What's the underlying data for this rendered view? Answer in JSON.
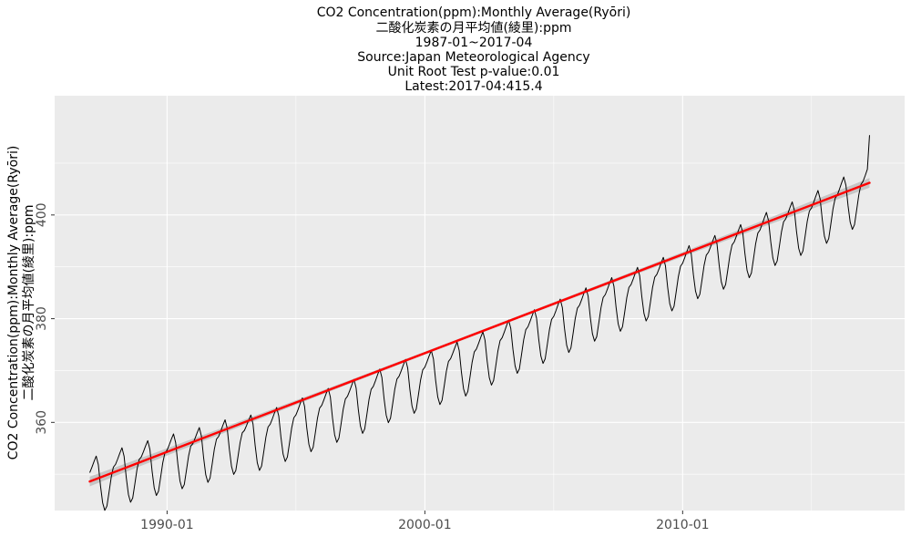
{
  "chart_data": {
    "type": "line",
    "title_lines": [
      "CO2 Concentration(ppm):Monthly Average(Ryōri)",
      "二酸化炭素の月平均値(綾里):ppm",
      "1987-01~2017-04",
      "Source:Japan Meteorological Agency",
      "Unit Root Test p-value:0.01",
      "Latest:2017-04:415.4"
    ],
    "xlabel": "",
    "ylabel_lines": [
      "CO2 Concentration(ppm):Monthly Average(Ryōri)",
      "二酸化炭素の月平均値(綾里):ppm"
    ],
    "x_range": [
      "1987-01",
      "2017-04"
    ],
    "x_ticks": [
      "1990-01",
      "2000-01",
      "2010-01"
    ],
    "y_ticks": [
      360,
      380,
      400
    ],
    "ylim": [
      343,
      423
    ],
    "grid": true,
    "legend": "none",
    "monthly_anomaly": [
      1.6,
      2.5,
      3.5,
      4.4,
      2.6,
      -1.6,
      -5.0,
      -6.6,
      -5.9,
      -3.3,
      -0.6,
      1.2
    ],
    "series": [
      {
        "type": "yearly_means",
        "years": [
          1987,
          1988,
          1989,
          1990,
          1991,
          1992,
          1993,
          1994,
          1995,
          1996,
          1997,
          1998,
          1999,
          2000,
          2001,
          2002,
          2003,
          2004,
          2005,
          2006,
          2007,
          2008,
          2009,
          2010,
          2011,
          2012,
          2013,
          2014,
          2015,
          2016,
          2017
        ],
        "values": [
          349.5,
          351.1,
          352.4,
          353.7,
          354.9,
          356.5,
          357.2,
          358.9,
          360.8,
          362.6,
          364.3,
          366.4,
          368.2,
          369.9,
          371.5,
          373.6,
          375.9,
          377.8,
          379.9,
          382.1,
          384.0,
          386.0,
          387.9,
          390.3,
          392.1,
          394.3,
          396.7,
          398.6,
          400.9,
          403.6,
          406.2
        ]
      },
      {
        "type": "monthly_average",
        "start": "1987-01",
        "end": "2017-04",
        "latest": 415.4
      },
      {
        "type": "linear_trend",
        "x": [
          "1987-01",
          "2017-04"
        ],
        "y": [
          348.6,
          406.2
        ],
        "ci_band": 0.6
      }
    ],
    "colors": {
      "panel": "#ebebeb",
      "gridline": "#ffffff",
      "line": "#000000",
      "trend": "#ff0000",
      "band": "#bdbdbd"
    }
  }
}
